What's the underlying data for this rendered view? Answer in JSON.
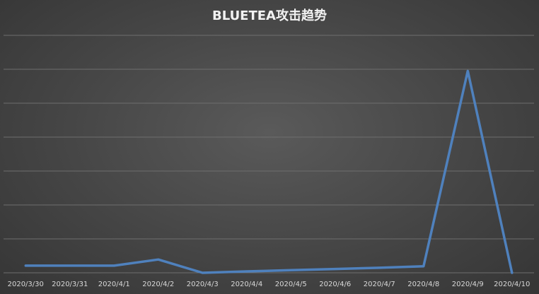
{
  "chart_data": {
    "type": "line",
    "title": "BLUETEA攻击趋势",
    "categories": [
      "2020/3/30",
      "2020/3/31",
      "2020/4/1",
      "2020/4/2",
      "2020/4/3",
      "2020/4/4",
      "2020/4/5",
      "2020/4/6",
      "2020/4/7",
      "2020/4/8",
      "2020/4/9",
      "2020/4/10"
    ],
    "series": [
      {
        "values": [
          60,
          60,
          60,
          112,
          0,
          12,
          22,
          32,
          42,
          55,
          1700,
          0
        ]
      }
    ],
    "ylim": [
      0,
      2000
    ],
    "gridlines": true,
    "line_color": "#4f81bd"
  }
}
